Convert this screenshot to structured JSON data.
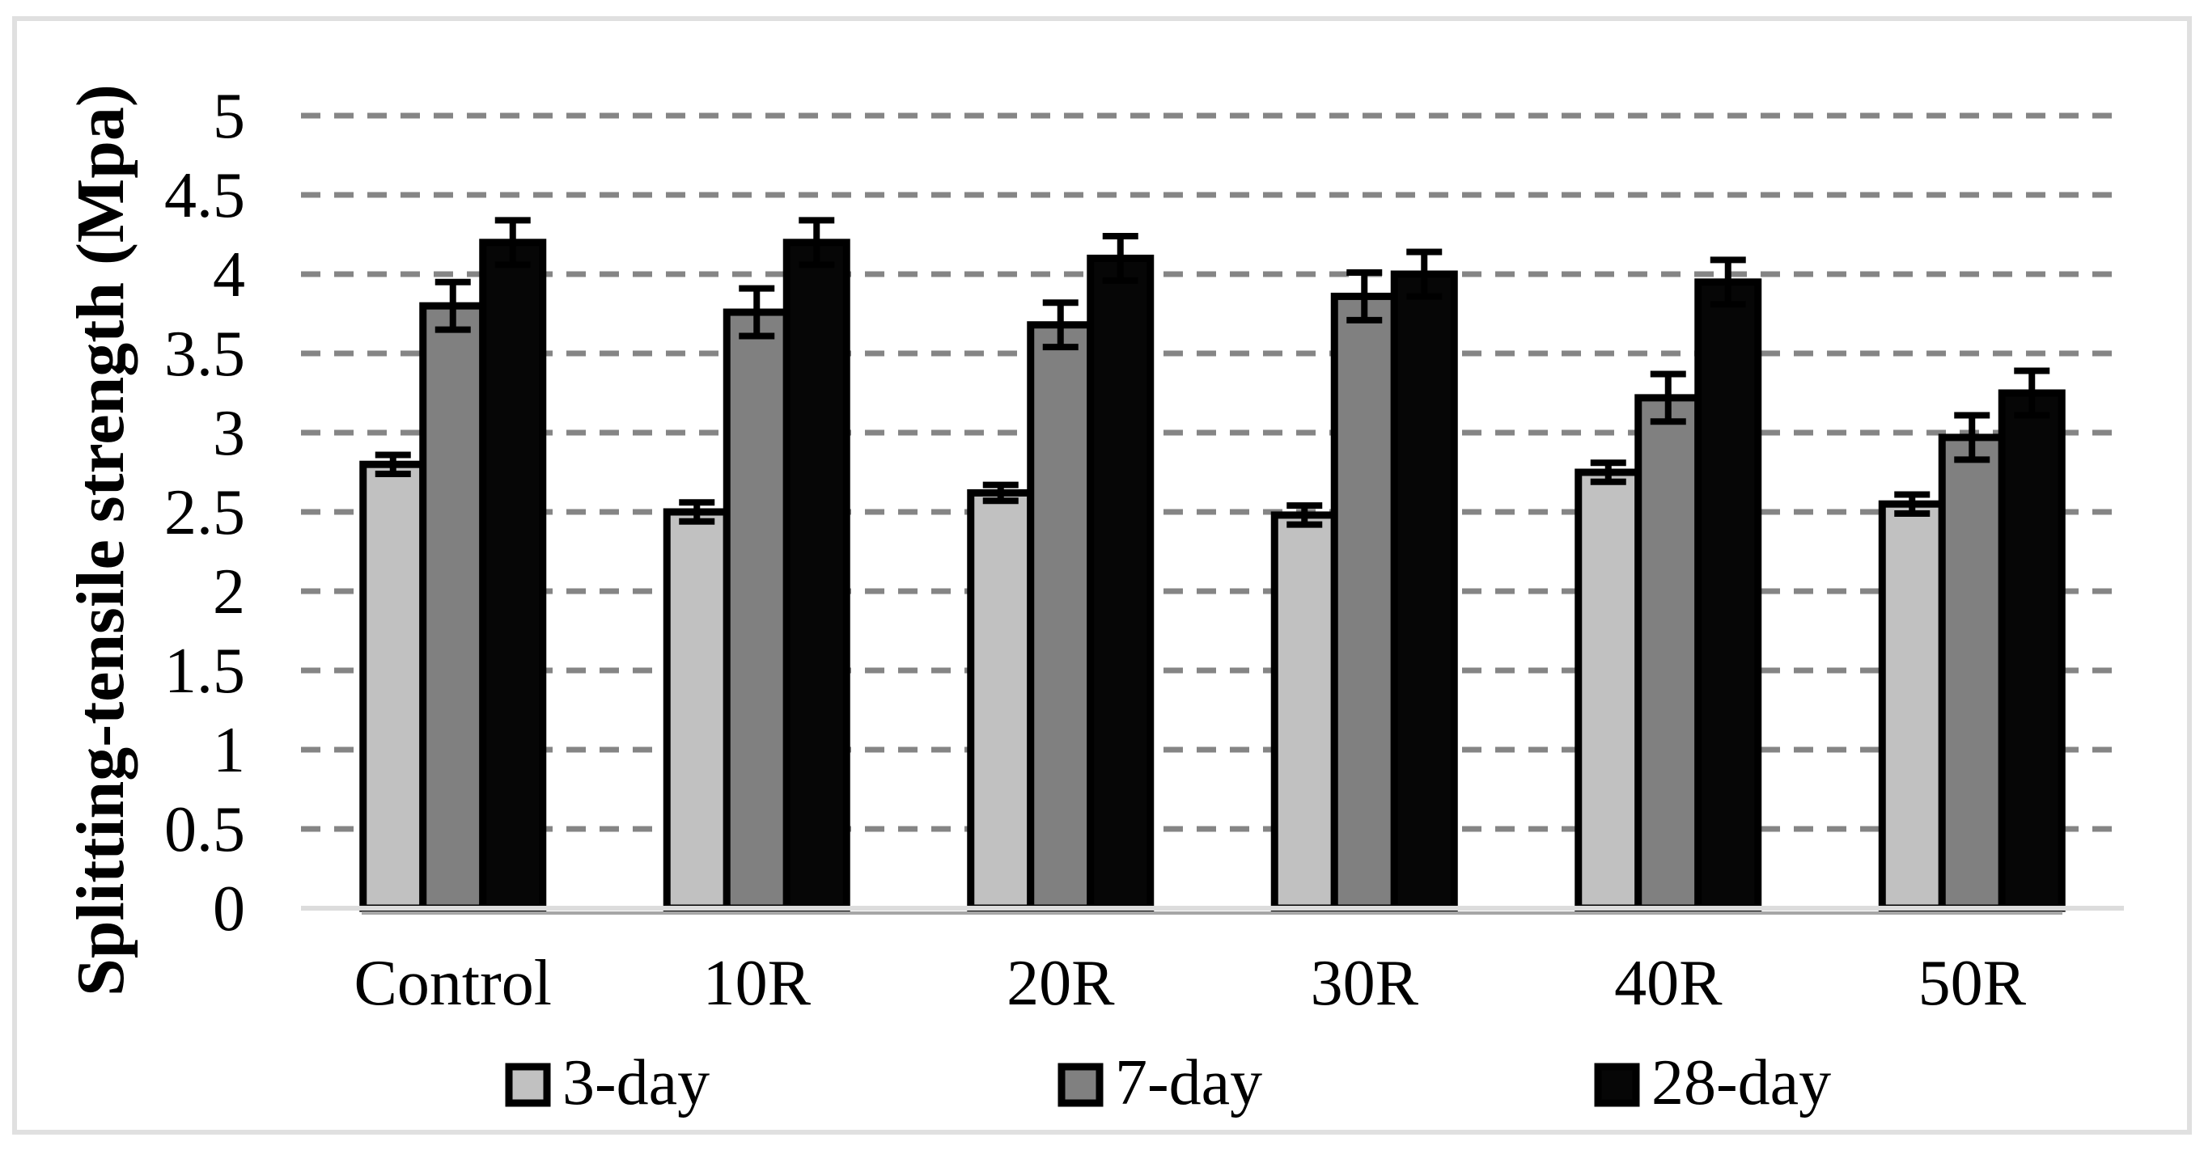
{
  "figure": {
    "background": "#ffffff",
    "border_color": "#e0e0e0"
  },
  "chart_data": {
    "type": "bar",
    "title": "",
    "xlabel": "",
    "ylabel": "Splitting-tensile strength (Mpa)",
    "ylim": [
      0,
      5
    ],
    "ytick_step": 0.5,
    "yticks": [
      "0",
      "0.5",
      "1",
      "1.5",
      "2",
      "2.5",
      "3",
      "3.5",
      "4",
      "4.5",
      "5"
    ],
    "grid": "horizontal-dashed",
    "legend_position": "bottom",
    "categories": [
      "Control",
      "10R",
      "20R",
      "30R",
      "40R",
      "50R"
    ],
    "series": [
      {
        "name": "3-day",
        "color": "#c1c1c1",
        "values": [
          2.8,
          2.5,
          2.62,
          2.48,
          2.75,
          2.55
        ],
        "errors": [
          0.06,
          0.06,
          0.05,
          0.06,
          0.06,
          0.06
        ]
      },
      {
        "name": "7-day",
        "color": "#808080",
        "values": [
          3.8,
          3.76,
          3.68,
          3.86,
          3.22,
          2.97
        ],
        "errors": [
          0.15,
          0.15,
          0.14,
          0.15,
          0.15,
          0.14
        ]
      },
      {
        "name": "28-day",
        "color": "#060606",
        "values": [
          4.2,
          4.2,
          4.1,
          4.0,
          3.95,
          3.25
        ],
        "errors": [
          0.14,
          0.14,
          0.14,
          0.14,
          0.14,
          0.14
        ]
      }
    ],
    "colors": {
      "bar_outline": "#000000",
      "gridline": "#858585",
      "baseline": "#dcdcdc",
      "under_bar_line": "#a6a6a6",
      "text": "#000000"
    }
  }
}
